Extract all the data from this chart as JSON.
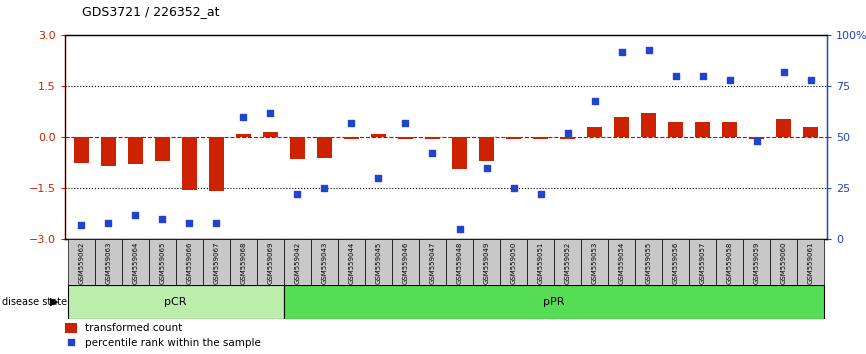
{
  "title": "GDS3721 / 226352_at",
  "samples": [
    "GSM559062",
    "GSM559063",
    "GSM559064",
    "GSM559065",
    "GSM559066",
    "GSM559067",
    "GSM559068",
    "GSM559069",
    "GSM559042",
    "GSM559043",
    "GSM559044",
    "GSM559045",
    "GSM559046",
    "GSM559047",
    "GSM559048",
    "GSM559049",
    "GSM559050",
    "GSM559051",
    "GSM559052",
    "GSM559053",
    "GSM559054",
    "GSM559055",
    "GSM559056",
    "GSM559057",
    "GSM559058",
    "GSM559059",
    "GSM559060",
    "GSM559061"
  ],
  "transformed_count": [
    -0.75,
    -0.85,
    -0.8,
    -0.7,
    -1.55,
    -1.6,
    0.08,
    0.15,
    -0.65,
    -0.6,
    -0.05,
    0.1,
    -0.05,
    -0.05,
    -0.95,
    -0.7,
    -0.05,
    -0.05,
    -0.05,
    0.3,
    0.6,
    0.7,
    0.45,
    0.45,
    0.45,
    -0.05,
    0.55,
    0.3
  ],
  "percentile_rank": [
    7,
    8,
    12,
    10,
    8,
    8,
    60,
    62,
    22,
    25,
    57,
    30,
    57,
    42,
    5,
    35,
    25,
    22,
    52,
    68,
    92,
    93,
    80,
    80,
    78,
    48,
    82,
    78
  ],
  "pCR_count": 8,
  "pPR_count": 20,
  "bar_color": "#cc2200",
  "dot_color": "#2244cc",
  "pCR_color": "#bbeeaa",
  "pPR_color": "#55dd55",
  "pCR_label": "pCR",
  "pPR_label": "pPR",
  "ylim": [
    -3,
    3
  ],
  "y2lim": [
    0,
    100
  ],
  "yticks": [
    -3,
    -1.5,
    0,
    1.5,
    3
  ],
  "y2ticks": [
    0,
    25,
    50,
    75,
    100
  ],
  "y2labels": [
    "0",
    "25",
    "50",
    "75",
    "100%"
  ],
  "hlines_dotted": [
    -1.5,
    1.5
  ],
  "hline_zero_color": "#cc0000",
  "bg_color": "#ffffff"
}
